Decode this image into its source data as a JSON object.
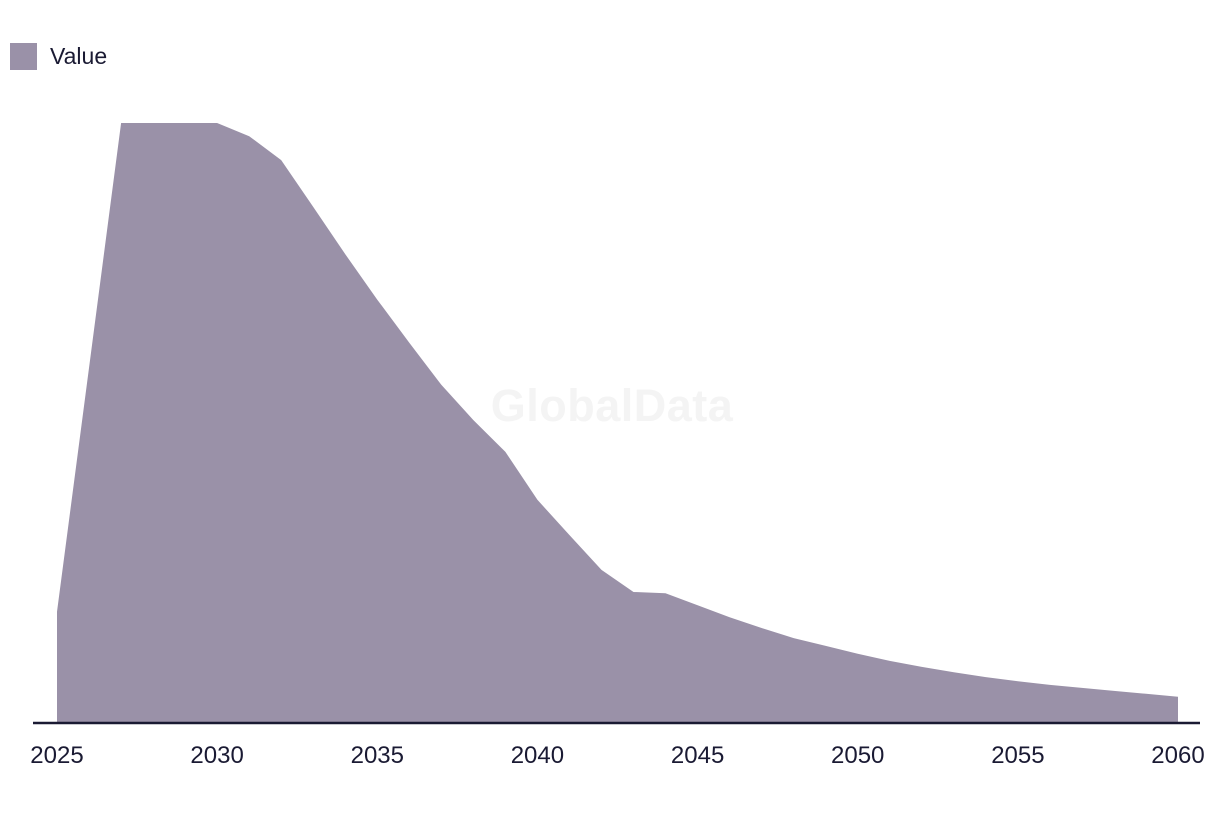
{
  "legend": {
    "label": "Value"
  },
  "watermark_text": "GlobalData",
  "colors": {
    "area_fill": "#9a91a8",
    "axis_line": "#1a1a33",
    "label_text": "#1a1a33",
    "watermark": "#f4f4f4",
    "background": "#ffffff"
  },
  "x_axis": {
    "tick_labels": [
      "2025",
      "2030",
      "2035",
      "2040",
      "2045",
      "2050",
      "2055",
      "2060"
    ]
  },
  "chart_data": {
    "type": "area",
    "title": "",
    "xlabel": "",
    "ylabel": "",
    "legend_position": "top-left",
    "grid": false,
    "y_axis_visible": false,
    "value_scale": "relative units, peak normalized to 100 (no y-axis labels shown in chart)",
    "xlim": [
      2025,
      2060
    ],
    "ylim": [
      0,
      100
    ],
    "x_ticks": [
      2025,
      2030,
      2035,
      2040,
      2045,
      2050,
      2055,
      2060
    ],
    "series": [
      {
        "name": "Value",
        "color": "#9a91a8",
        "x": [
          2025,
          2026,
          2027,
          2028,
          2029,
          2030,
          2031,
          2032,
          2033,
          2034,
          2035,
          2036,
          2037,
          2038,
          2039,
          2040,
          2041,
          2042,
          2043,
          2044,
          2045,
          2046,
          2047,
          2048,
          2049,
          2050,
          2051,
          2052,
          2053,
          2054,
          2055,
          2056,
          2057,
          2058,
          2059,
          2060
        ],
        "values": [
          18.4,
          59.1,
          100,
          100,
          100,
          100,
          97.8,
          93.8,
          86.0,
          78.1,
          70.5,
          63.3,
          56.3,
          50.4,
          45.1,
          37.1,
          31.2,
          25.4,
          21.7,
          21.5,
          19.5,
          17.5,
          15.7,
          14.0,
          12.7,
          11.4,
          10.2,
          9.2,
          8.3,
          7.5,
          6.8,
          6.2,
          5.7,
          5.2,
          4.7,
          4.2
        ]
      }
    ]
  }
}
